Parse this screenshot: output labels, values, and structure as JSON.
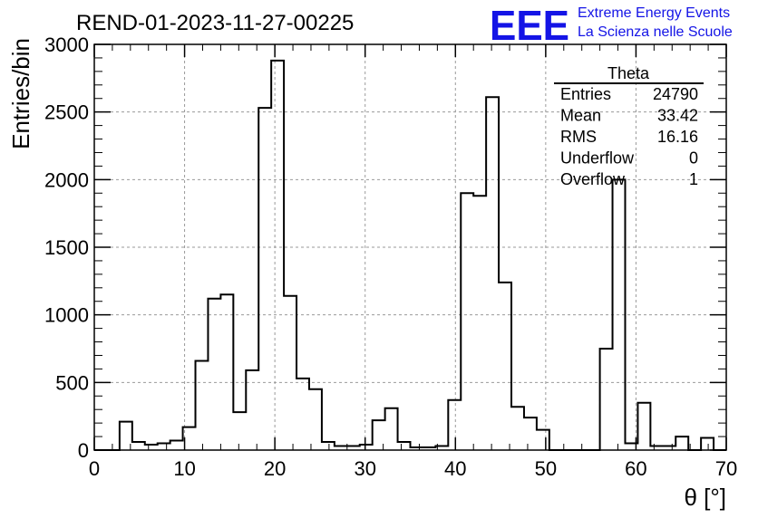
{
  "header": {
    "run_title": "REND-01-2023-11-27-00225",
    "logo_mark": "EEE",
    "logo_line1": "Extreme Energy Events",
    "logo_line2": "La Scienza nelle Scuole",
    "logo_color": "#1414e6"
  },
  "stats_box": {
    "name": "Theta",
    "rows": [
      {
        "label": "Entries",
        "value": "24790"
      },
      {
        "label": "Mean",
        "value": "33.42"
      },
      {
        "label": "RMS",
        "value": "16.16"
      },
      {
        "label": "Underflow",
        "value": "0"
      },
      {
        "label": "Overflow",
        "value": "1"
      }
    ]
  },
  "chart_data": {
    "type": "bar",
    "histogram": true,
    "title": "REND-01-2023-11-27-00225",
    "xlabel": "θ [°]",
    "ylabel": "Entries/bin",
    "xlim": [
      0,
      70
    ],
    "ylim": [
      0,
      3000
    ],
    "grid": true,
    "x_ticks": [
      "0",
      "10",
      "20",
      "30",
      "40",
      "50",
      "60",
      "70"
    ],
    "y_ticks": [
      "0",
      "500",
      "1000",
      "1500",
      "2000",
      "2500",
      "3000"
    ],
    "bin_edges": [
      0,
      1.4,
      2.8,
      4.2,
      5.6,
      7.0,
      8.4,
      9.8,
      11.2,
      12.6,
      14.0,
      15.4,
      16.8,
      18.2,
      19.6,
      21.0,
      22.4,
      23.8,
      25.2,
      26.6,
      28.0,
      29.4,
      30.8,
      32.2,
      33.6,
      35.0,
      36.4,
      37.8,
      39.2,
      40.6,
      42.0,
      43.4,
      44.8,
      46.2,
      47.6,
      49.0,
      50.4,
      51.8,
      53.2,
      54.6,
      56.0,
      57.4,
      58.8,
      60.2,
      61.6,
      63.0,
      64.4,
      65.8,
      67.2,
      68.6,
      70.0
    ],
    "values": [
      0,
      0,
      210,
      60,
      40,
      50,
      70,
      170,
      660,
      1120,
      1150,
      280,
      590,
      2530,
      2880,
      1140,
      530,
      450,
      60,
      30,
      30,
      40,
      220,
      310,
      60,
      20,
      20,
      30,
      370,
      1900,
      1880,
      2610,
      1240,
      320,
      240,
      150,
      0,
      0,
      0,
      0,
      750,
      2000,
      50,
      350,
      30,
      30,
      100,
      0,
      90,
      0
    ],
    "line_color": "#000000"
  }
}
